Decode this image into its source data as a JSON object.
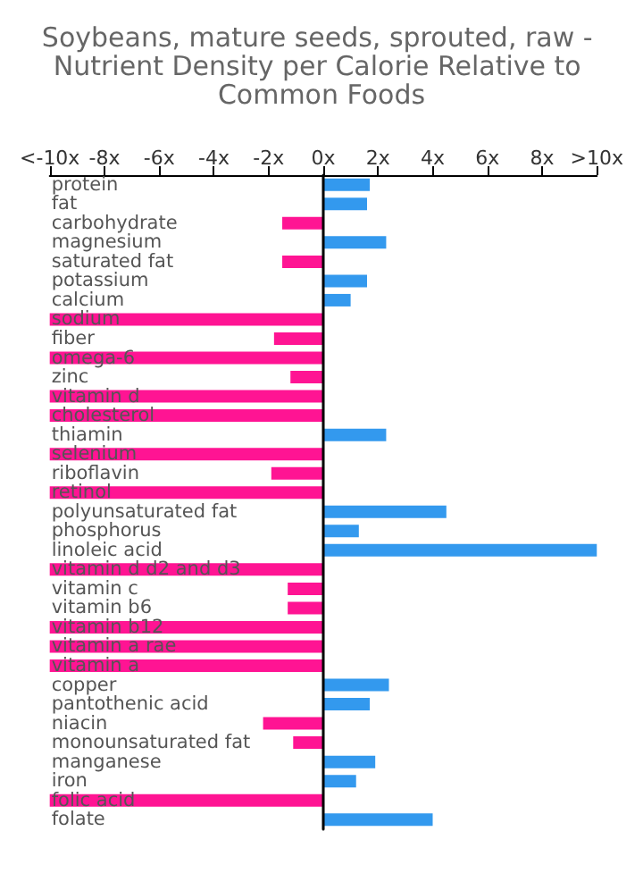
{
  "chart_data": {
    "type": "bar",
    "orientation": "horizontal",
    "title": "Soybeans, mature seeds, sprouted, raw - Nutrient Density per Calorie Relative to Common Foods",
    "categories": [
      "protein",
      "fat",
      "carbohydrate",
      "magnesium",
      "saturated fat",
      "potassium",
      "calcium",
      "sodium",
      "fiber",
      "omega-6",
      "zinc",
      "vitamin d",
      "cholesterol",
      "thiamin",
      "selenium",
      "riboflavin",
      "retinol",
      "polyunsaturated fat",
      "phosphorus",
      "linoleic acid",
      "vitamin d d2 and d3",
      "vitamin c",
      "vitamin b6",
      "vitamin b12",
      "vitamin a rae",
      "vitamin a",
      "copper",
      "pantothenic acid",
      "niacin",
      "monounsaturated fat",
      "manganese",
      "iron",
      "folic acid",
      "folate"
    ],
    "values": [
      1.7,
      1.6,
      -1.5,
      2.3,
      -1.5,
      1.6,
      1.0,
      -10,
      -1.8,
      -10,
      -1.2,
      -10,
      -10,
      2.3,
      -10,
      -1.9,
      -10,
      4.5,
      1.3,
      10,
      -10,
      -1.3,
      -1.3,
      -10,
      -10,
      -10,
      2.4,
      1.7,
      -2.2,
      -1.1,
      1.9,
      1.2,
      -10,
      4.0
    ],
    "colors": [
      "#3399ee",
      "#3399ee",
      "#ff1493",
      "#3399ee",
      "#ff1493",
      "#3399ee",
      "#3399ee",
      "#ff1493",
      "#ff1493",
      "#ff1493",
      "#ff1493",
      "#ff1493",
      "#ff1493",
      "#3399ee",
      "#ff1493",
      "#ff1493",
      "#ff1493",
      "#3399ee",
      "#3399ee",
      "#3399ee",
      "#ff1493",
      "#ff1493",
      "#ff1493",
      "#ff1493",
      "#ff1493",
      "#ff1493",
      "#3399ee",
      "#3399ee",
      "#ff1493",
      "#ff1493",
      "#3399ee",
      "#3399ee",
      "#ff1493",
      "#3399ee"
    ],
    "xlim": [
      -10,
      10
    ],
    "xticks": [
      {
        "value": -10,
        "label": "<-10x"
      },
      {
        "value": -8,
        "label": "-8x"
      },
      {
        "value": -6,
        "label": "-6x"
      },
      {
        "value": -4,
        "label": "-4x"
      },
      {
        "value": -2,
        "label": "-2x"
      },
      {
        "value": 0,
        "label": "0x"
      },
      {
        "value": 2,
        "label": "2x"
      },
      {
        "value": 4,
        "label": "4x"
      },
      {
        "value": 6,
        "label": "6x"
      },
      {
        "value": 8,
        "label": "8x"
      },
      {
        "value": 10,
        "label": ">10x"
      }
    ]
  }
}
